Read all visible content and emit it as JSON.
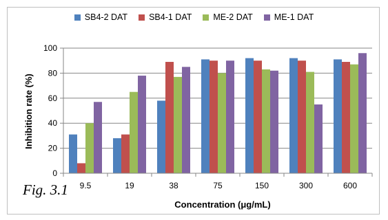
{
  "caption": "Fig. 3.1",
  "chart_data": {
    "type": "bar",
    "title": "",
    "xlabel": "Concentration (μg/mL)",
    "ylabel": "Inhibition rate (%)",
    "ylim": [
      0,
      100
    ],
    "yticks": [
      0,
      20,
      40,
      60,
      80,
      100
    ],
    "grid": true,
    "legend_position": "top",
    "categories": [
      "9.5",
      "19",
      "38",
      "75",
      "150",
      "300",
      "600"
    ],
    "series": [
      {
        "name": "SB4-2 DAT",
        "color": "#4f81bd",
        "values": [
          31,
          28,
          58,
          91,
          92,
          92,
          91
        ]
      },
      {
        "name": "SB4-1 DAT",
        "color": "#c0504d",
        "values": [
          8,
          31,
          89,
          90,
          90,
          90,
          89
        ]
      },
      {
        "name": "ME-2 DAT",
        "color": "#9bbb59",
        "values": [
          40,
          65,
          77,
          80,
          83,
          81,
          87
        ]
      },
      {
        "name": "ME-1 DAT",
        "color": "#8064a2",
        "values": [
          57,
          78,
          85,
          90,
          82,
          55,
          96
        ]
      }
    ]
  }
}
